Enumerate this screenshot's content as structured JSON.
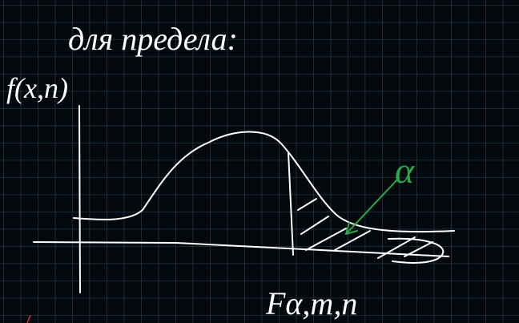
{
  "title": "для предела:",
  "y_label": "f(x,n)",
  "x_label": "Fα,m,n",
  "annotation": "α"
}
